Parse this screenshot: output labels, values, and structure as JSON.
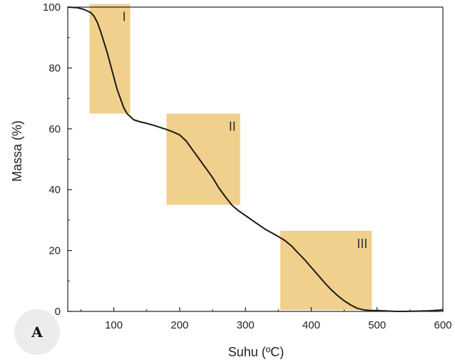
{
  "panel_label": "A",
  "chart_data": {
    "type": "line",
    "xlabel": "Suhu (ºC)",
    "ylabel": "Massa (%)",
    "xlim": [
      30,
      600
    ],
    "ylim": [
      0,
      100
    ],
    "x_ticks": [
      100,
      200,
      300,
      400,
      500,
      600
    ],
    "y_ticks": [
      0,
      20,
      40,
      60,
      80,
      100
    ],
    "grid": false,
    "line_color": "#1a1a1a",
    "region_color": "#f0d08c",
    "regions": [
      {
        "label": "I",
        "x": [
          63,
          125
        ],
        "y": [
          65,
          101
        ]
      },
      {
        "label": "II",
        "x": [
          180,
          292
        ],
        "y": [
          35,
          65
        ]
      },
      {
        "label": "III",
        "x": [
          353,
          492
        ],
        "y": [
          0.5,
          26.5
        ]
      }
    ],
    "series": [
      {
        "x": [
          30,
          45,
          55,
          65,
          70,
          75,
          80,
          85,
          90,
          95,
          100,
          105,
          110,
          115,
          120,
          125,
          130,
          140,
          150,
          160,
          170,
          180,
          190,
          200,
          210,
          220,
          230,
          240,
          250,
          260,
          270,
          280,
          290,
          300,
          310,
          320,
          330,
          340,
          350,
          360,
          370,
          380,
          390,
          400,
          410,
          420,
          430,
          440,
          450,
          460,
          470,
          480,
          490,
          500,
          510,
          520,
          530,
          540,
          560,
          580,
          600
        ],
        "y": [
          100,
          99.8,
          99.2,
          98.2,
          97.0,
          95.0,
          92.0,
          88.5,
          85.0,
          81.0,
          77.0,
          73.0,
          70.0,
          67.0,
          65.0,
          64.0,
          63.0,
          62.3,
          61.8,
          61.2,
          60.5,
          59.8,
          59.0,
          58.0,
          56.0,
          53.0,
          50.0,
          47.0,
          44.0,
          40.5,
          37.5,
          34.8,
          33.0,
          31.5,
          30.0,
          28.5,
          27.0,
          25.8,
          24.6,
          23.3,
          21.5,
          19.2,
          17.0,
          14.5,
          12.0,
          9.5,
          7.2,
          5.2,
          3.5,
          2.1,
          1.0,
          0.5,
          0.3,
          0.3,
          0.2,
          0.1,
          0.0,
          0.0,
          0.1,
          0.2,
          0.5
        ]
      }
    ]
  }
}
